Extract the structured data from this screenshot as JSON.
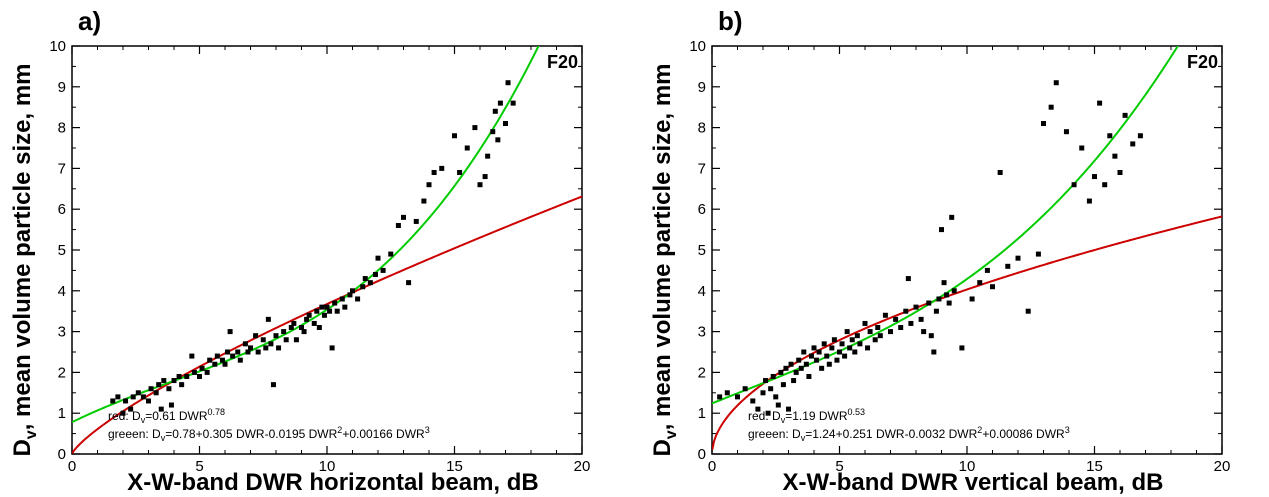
{
  "chart_data": [
    {
      "type": "scatter",
      "panel_label": "a)",
      "flight_label": "F20",
      "xlabel": "X-W-band DWR horizontal beam, dB",
      "ylabel": {
        "main": "D",
        "sub": "v",
        "rest": ", mean volume particle size, mm"
      },
      "xlim": [
        0,
        20
      ],
      "ylim": [
        0,
        10
      ],
      "xticks": [
        0,
        5,
        10,
        15,
        20
      ],
      "yticks": [
        0,
        1,
        2,
        3,
        4,
        5,
        6,
        7,
        8,
        9,
        10
      ],
      "legend": {
        "red": {
          "prefix": "red: D",
          "sub": "v",
          "mid": "=0.61 DWR",
          "sup": "0.78"
        },
        "green": {
          "prefix": "greeen:  D",
          "sub": "v",
          "mid": "=0.78+0.305 DWR-0.0195 DWR",
          "sup1": "2",
          "mid2": "+0.00166 DWR",
          "sup2": "3"
        }
      },
      "curves": [
        {
          "color": "#cc0000",
          "kind": "power",
          "a": 0.61,
          "b": 0.78,
          "xmin": 0.01,
          "xmax": 20
        },
        {
          "color": "#00cc00",
          "kind": "cubic",
          "c": [
            0.78,
            0.305,
            -0.0195,
            0.00166
          ],
          "xmin": 0,
          "xmax": 20
        }
      ],
      "points": [
        [
          1.6,
          1.3
        ],
        [
          1.8,
          1.4
        ],
        [
          2.0,
          1.0
        ],
        [
          2.1,
          1.3
        ],
        [
          2.3,
          1.1
        ],
        [
          2.4,
          1.4
        ],
        [
          2.6,
          1.5
        ],
        [
          2.8,
          1.4
        ],
        [
          3.0,
          1.3
        ],
        [
          3.1,
          1.6
        ],
        [
          3.3,
          1.5
        ],
        [
          3.4,
          1.7
        ],
        [
          3.5,
          1.1
        ],
        [
          3.6,
          1.8
        ],
        [
          3.8,
          1.6
        ],
        [
          3.9,
          1.2
        ],
        [
          4.0,
          1.8
        ],
        [
          4.2,
          1.9
        ],
        [
          4.3,
          1.7
        ],
        [
          4.5,
          1.9
        ],
        [
          4.7,
          2.4
        ],
        [
          4.8,
          2.0
        ],
        [
          5.0,
          1.9
        ],
        [
          5.1,
          2.1
        ],
        [
          5.3,
          2.0
        ],
        [
          5.4,
          2.3
        ],
        [
          5.6,
          2.2
        ],
        [
          5.7,
          2.4
        ],
        [
          5.9,
          2.3
        ],
        [
          6.0,
          2.2
        ],
        [
          6.1,
          2.5
        ],
        [
          6.2,
          3.0
        ],
        [
          6.3,
          2.4
        ],
        [
          6.5,
          2.5
        ],
        [
          6.6,
          2.3
        ],
        [
          6.8,
          2.7
        ],
        [
          6.9,
          2.5
        ],
        [
          7.0,
          2.6
        ],
        [
          7.2,
          2.9
        ],
        [
          7.3,
          2.5
        ],
        [
          7.5,
          2.8
        ],
        [
          7.6,
          2.6
        ],
        [
          7.7,
          3.3
        ],
        [
          7.8,
          2.7
        ],
        [
          7.9,
          1.7
        ],
        [
          8.0,
          2.9
        ],
        [
          8.1,
          2.6
        ],
        [
          8.3,
          3.0
        ],
        [
          8.4,
          2.8
        ],
        [
          8.6,
          3.1
        ],
        [
          8.7,
          3.2
        ],
        [
          8.8,
          2.8
        ],
        [
          9.0,
          3.1
        ],
        [
          9.1,
          3.0
        ],
        [
          9.2,
          3.3
        ],
        [
          9.3,
          3.4
        ],
        [
          9.5,
          3.2
        ],
        [
          9.6,
          3.5
        ],
        [
          9.7,
          3.1
        ],
        [
          9.8,
          3.6
        ],
        [
          9.9,
          3.4
        ],
        [
          10.0,
          3.6
        ],
        [
          10.1,
          3.5
        ],
        [
          10.2,
          2.6
        ],
        [
          10.3,
          3.7
        ],
        [
          10.4,
          3.5
        ],
        [
          10.6,
          3.8
        ],
        [
          10.7,
          3.6
        ],
        [
          10.9,
          3.9
        ],
        [
          11.0,
          4.0
        ],
        [
          11.2,
          3.8
        ],
        [
          11.4,
          4.1
        ],
        [
          11.5,
          4.3
        ],
        [
          11.7,
          4.2
        ],
        [
          11.9,
          4.4
        ],
        [
          12.0,
          4.8
        ],
        [
          12.2,
          4.5
        ],
        [
          12.5,
          4.9
        ],
        [
          12.8,
          5.6
        ],
        [
          13.0,
          5.8
        ],
        [
          13.2,
          4.2
        ],
        [
          13.5,
          5.7
        ],
        [
          13.8,
          6.2
        ],
        [
          14.0,
          6.6
        ],
        [
          14.2,
          6.9
        ],
        [
          14.5,
          7.0
        ],
        [
          15.0,
          7.8
        ],
        [
          15.2,
          6.9
        ],
        [
          15.5,
          7.5
        ],
        [
          15.8,
          8.0
        ],
        [
          16.0,
          6.6
        ],
        [
          16.2,
          6.8
        ],
        [
          16.3,
          7.3
        ],
        [
          16.5,
          7.9
        ],
        [
          16.6,
          8.4
        ],
        [
          16.7,
          7.7
        ],
        [
          16.8,
          8.6
        ],
        [
          17.0,
          8.1
        ],
        [
          17.1,
          9.1
        ],
        [
          17.3,
          8.6
        ]
      ]
    },
    {
      "type": "scatter",
      "panel_label": "b)",
      "flight_label": "F20",
      "xlabel": "X-W-band DWR vertical beam, dB",
      "ylabel": {
        "main": "D",
        "sub": "v",
        "rest": ", mean volume particle size, mm"
      },
      "xlim": [
        0,
        20
      ],
      "ylim": [
        0,
        10
      ],
      "xticks": [
        0,
        5,
        10,
        15,
        20
      ],
      "yticks": [
        0,
        1,
        2,
        3,
        4,
        5,
        6,
        7,
        8,
        9,
        10
      ],
      "legend": {
        "red": {
          "prefix": "red: D",
          "sub": "v",
          "mid": "=1.19 DWR",
          "sup": "0.53"
        },
        "green": {
          "prefix": "greeen:  D",
          "sub": "v",
          "mid": "=1.24+0.251 DWR-0.0032 DWR",
          "sup1": "2",
          "mid2": "+0.00086 DWR",
          "sup2": "3"
        }
      },
      "curves": [
        {
          "color": "#cc0000",
          "kind": "power",
          "a": 1.19,
          "b": 0.53,
          "xmin": 0.01,
          "xmax": 20
        },
        {
          "color": "#00cc00",
          "kind": "cubic",
          "c": [
            1.24,
            0.251,
            -0.0032,
            0.00086
          ],
          "xmin": 0,
          "xmax": 20
        }
      ],
      "points": [
        [
          0.3,
          1.4
        ],
        [
          0.6,
          1.5
        ],
        [
          1.0,
          1.4
        ],
        [
          1.3,
          1.6
        ],
        [
          1.6,
          1.3
        ],
        [
          1.8,
          1.1
        ],
        [
          2.0,
          1.5
        ],
        [
          2.1,
          1.8
        ],
        [
          2.2,
          1.0
        ],
        [
          2.3,
          1.6
        ],
        [
          2.4,
          1.9
        ],
        [
          2.5,
          1.4
        ],
        [
          2.6,
          1.2
        ],
        [
          2.7,
          2.0
        ],
        [
          2.8,
          1.7
        ],
        [
          2.9,
          2.1
        ],
        [
          3.0,
          1.1
        ],
        [
          3.1,
          2.2
        ],
        [
          3.2,
          1.8
        ],
        [
          3.3,
          2.0
        ],
        [
          3.4,
          2.3
        ],
        [
          3.5,
          2.1
        ],
        [
          3.6,
          2.5
        ],
        [
          3.7,
          2.2
        ],
        [
          3.8,
          1.9
        ],
        [
          3.9,
          2.4
        ],
        [
          4.0,
          2.6
        ],
        [
          4.1,
          2.3
        ],
        [
          4.2,
          2.5
        ],
        [
          4.3,
          2.1
        ],
        [
          4.4,
          2.7
        ],
        [
          4.5,
          2.4
        ],
        [
          4.6,
          2.2
        ],
        [
          4.7,
          2.6
        ],
        [
          4.8,
          2.8
        ],
        [
          4.9,
          2.3
        ],
        [
          5.0,
          2.5
        ],
        [
          5.1,
          2.7
        ],
        [
          5.2,
          2.4
        ],
        [
          5.3,
          3.0
        ],
        [
          5.4,
          2.6
        ],
        [
          5.5,
          2.8
        ],
        [
          5.6,
          2.5
        ],
        [
          5.7,
          2.9
        ],
        [
          5.8,
          2.7
        ],
        [
          6.0,
          3.2
        ],
        [
          6.1,
          2.6
        ],
        [
          6.2,
          3.0
        ],
        [
          6.4,
          2.8
        ],
        [
          6.5,
          3.1
        ],
        [
          6.6,
          2.9
        ],
        [
          6.8,
          3.4
        ],
        [
          7.0,
          3.0
        ],
        [
          7.2,
          3.3
        ],
        [
          7.4,
          3.1
        ],
        [
          7.6,
          3.5
        ],
        [
          7.7,
          4.3
        ],
        [
          7.8,
          3.2
        ],
        [
          8.0,
          3.6
        ],
        [
          8.2,
          3.3
        ],
        [
          8.3,
          3.0
        ],
        [
          8.5,
          3.7
        ],
        [
          8.6,
          2.9
        ],
        [
          8.7,
          2.5
        ],
        [
          8.8,
          3.5
        ],
        [
          8.9,
          3.8
        ],
        [
          9.0,
          5.5
        ],
        [
          9.1,
          4.2
        ],
        [
          9.2,
          3.9
        ],
        [
          9.3,
          3.7
        ],
        [
          9.4,
          5.8
        ],
        [
          9.5,
          4.0
        ],
        [
          9.8,
          2.6
        ],
        [
          10.2,
          3.8
        ],
        [
          10.5,
          4.2
        ],
        [
          10.8,
          4.5
        ],
        [
          11.0,
          4.1
        ],
        [
          11.3,
          6.9
        ],
        [
          11.6,
          4.6
        ],
        [
          12.0,
          4.8
        ],
        [
          12.4,
          3.5
        ],
        [
          12.8,
          4.9
        ],
        [
          13.0,
          8.1
        ],
        [
          13.3,
          8.5
        ],
        [
          13.5,
          9.1
        ],
        [
          13.9,
          7.9
        ],
        [
          14.2,
          6.6
        ],
        [
          14.5,
          7.5
        ],
        [
          14.8,
          6.2
        ],
        [
          15.0,
          6.8
        ],
        [
          15.2,
          8.6
        ],
        [
          15.4,
          6.6
        ],
        [
          15.6,
          7.8
        ],
        [
          15.8,
          7.3
        ],
        [
          16.0,
          6.9
        ],
        [
          16.2,
          8.3
        ],
        [
          16.5,
          7.6
        ],
        [
          16.8,
          7.8
        ]
      ]
    }
  ]
}
